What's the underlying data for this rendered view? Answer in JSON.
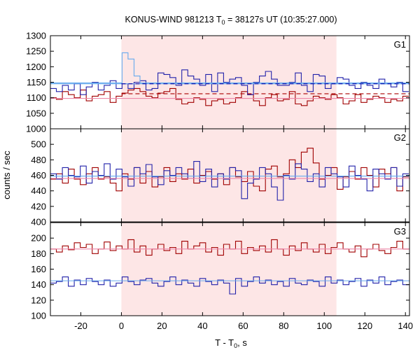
{
  "chart_data": {
    "type": "line",
    "title": {
      "main": "KONUS-WIND 981213 T",
      "sub": "0",
      "rest": " = 38127s UT (10:35:27.000)"
    },
    "xlabel": {
      "main": "T - T",
      "sub": "0",
      "rest": ", s"
    },
    "ylabel": "counts / sec",
    "xlim": [
      -35,
      142
    ],
    "x_ticks": [
      -20,
      0,
      20,
      40,
      60,
      80,
      100,
      120,
      140
    ],
    "highlight_interval": [
      0,
      106
    ],
    "bin_start": -35,
    "bin_width": 2.944,
    "colors": {
      "highlight": "#fde6e6",
      "dark_red": "#a00000",
      "dark_blue": "#2222aa",
      "light_blue": "#66aaee",
      "pink": "#ee88aa",
      "dashed_blue": "#0000aa",
      "dashed_red": "#aa0000"
    },
    "panels": [
      {
        "label": "G1",
        "ylim": [
          1000,
          1300
        ],
        "y_ticks": [
          1000,
          1050,
          1100,
          1150,
          1200,
          1250,
          1300
        ],
        "series": [
          {
            "color_key": "dark_red",
            "values": [
              1100,
              1095,
              1120,
              1110,
              1100,
              1125,
              1090,
              1105,
              1110,
              1120,
              1085,
              1105,
              1115,
              1125,
              1130,
              1120,
              1105,
              1100,
              1115,
              1120,
              1130,
              1095,
              1080,
              1085,
              1100,
              1095,
              1075,
              1090,
              1095,
              1080,
              1085,
              1100,
              1120,
              1110,
              1090,
              1075,
              1100,
              1110,
              1090,
              1095,
              1120,
              1080,
              1075,
              1090,
              1105,
              1100,
              1095,
              1110,
              1100,
              1080,
              1090,
              1110,
              1085,
              1095,
              1105,
              1100,
              1085,
              1095,
              1090,
              1105
            ]
          },
          {
            "color_key": "dark_blue",
            "values": [
              1130,
              1120,
              1140,
              1125,
              1145,
              1110,
              1135,
              1150,
              1125,
              1140,
              1155,
              1130,
              1145,
              1130,
              1150,
              1155,
              1125,
              1130,
              1180,
              1175,
              1165,
              1140,
              1190,
              1170,
              1160,
              1140,
              1175,
              1120,
              1180,
              1150,
              1160,
              1165,
              1140,
              1110,
              1150,
              1170,
              1185,
              1160,
              1140,
              1140,
              1150,
              1180,
              1140,
              1120,
              1175,
              1170,
              1130,
              1145,
              1165,
              1160,
              1140,
              1130,
              1150,
              1140,
              1130,
              1160,
              1145,
              1135,
              1150,
              1120
            ]
          },
          {
            "color_key": "light_blue",
            "values": [
              1148,
              1148,
              1148,
              1148,
              1148,
              1148,
              1148,
              1148,
              1148,
              1148,
              1148,
              1148,
              1245,
              1225,
              1170,
              1148,
              1148,
              1148,
              1148,
              1148,
              1148,
              1148,
              1148,
              1148,
              1148,
              1148,
              1148,
              1148,
              1148,
              1148,
              1148,
              1148,
              1148,
              1148,
              1148,
              1148,
              1148,
              1148,
              1148,
              1148,
              1148,
              1148,
              1148,
              1148,
              1148,
              1148,
              1148,
              1148,
              1148,
              1148,
              1148,
              1148,
              1148,
              1148,
              1148,
              1148,
              1148,
              1148,
              1148,
              1148
            ]
          }
        ],
        "fit_lines": [
          {
            "color_key": "light_blue",
            "style": "solid",
            "y": 1145,
            "x": [
              -35,
              142
            ]
          },
          {
            "color_key": "pink",
            "style": "solid",
            "y": 1098,
            "x": [
              -35,
              142
            ]
          },
          {
            "color_key": "dashed_blue",
            "style": "dashed",
            "y": 1145,
            "x": [
              0,
              142
            ]
          },
          {
            "color_key": "dashed_red",
            "style": "dashed",
            "y": 1113,
            "x": [
              0,
              142
            ]
          }
        ]
      },
      {
        "label": "G2",
        "ylim": [
          400,
          520
        ],
        "y_ticks": [
          400,
          420,
          440,
          460,
          480,
          500
        ],
        "series": [
          {
            "color_key": "dark_red",
            "values": [
              455,
              462,
              450,
              468,
              455,
              448,
              462,
              470,
              455,
              458,
              450,
              440,
              462,
              455,
              470,
              450,
              465,
              445,
              458,
              470,
              452,
              462,
              455,
              468,
              450,
              460,
              465,
              455,
              462,
              448,
              470,
              458,
              452,
              465,
              446,
              440,
              468,
              472,
              458,
              462,
              480,
              470,
              490,
              495,
              476,
              455,
              460,
              470,
              442,
              458,
              465,
              455,
              470,
              460,
              445,
              468,
              462,
              470,
              440,
              458
            ]
          },
          {
            "color_key": "dark_blue",
            "values": [
              462,
              455,
              470,
              460,
              458,
              472,
              450,
              465,
              460,
              475,
              455,
              468,
              458,
              446,
              470,
              462,
              474,
              458,
              448,
              466,
              460,
              470,
              462,
              456,
              478,
              452,
              468,
              445,
              462,
              455,
              470,
              466,
              430,
              450,
              455,
              470,
              462,
              445,
              428,
              460,
              455,
              475,
              468,
              452,
              462,
              445,
              470,
              462,
              458,
              445,
              472,
              460,
              455,
              440,
              468,
              462,
              455,
              470,
              446,
              462
            ]
          }
        ],
        "fit_lines": [
          {
            "color_key": "light_blue",
            "style": "solid",
            "y": 459,
            "x": [
              -35,
              142
            ]
          },
          {
            "color_key": "pink",
            "style": "solid",
            "y": 456,
            "x": [
              -35,
              142
            ]
          }
        ]
      },
      {
        "label": "G3",
        "ylim": [
          100,
          220
        ],
        "y_ticks": [
          100,
          120,
          140,
          160,
          180,
          200
        ],
        "series": [
          {
            "color_key": "dark_red",
            "values": [
              186,
              182,
              190,
              185,
              194,
              188,
              192,
              180,
              186,
              195,
              184,
              190,
              186,
              198,
              182,
              190,
              178,
              186,
              192,
              184,
              188,
              180,
              196,
              186,
              190,
              194,
              182,
              188,
              178,
              192,
              186,
              196,
              180,
              188,
              184,
              190,
              182,
              198,
              186,
              178,
              190,
              184,
              194,
              186,
              182,
              192,
              180,
              188,
              194,
              186,
              182,
              190,
              176,
              186,
              192,
              184,
              180,
              188,
              196,
              186
            ]
          },
          {
            "color_key": "dark_blue",
            "values": [
              142,
              144,
              150,
              138,
              146,
              140,
              148,
              144,
              140,
              146,
              138,
              142,
              150,
              144,
              140,
              146,
              148,
              142,
              138,
              144,
              150,
              140,
              146,
              142,
              138,
              148,
              144,
              140,
              146,
              142,
              128,
              148,
              138,
              144,
              150,
              142,
              146,
              140,
              144,
              138,
              148,
              142,
              140,
              146,
              144,
              138,
              150,
              142,
              146,
              140,
              144,
              148,
              138,
              146,
              142,
              150,
              140,
              144,
              146,
              140
            ]
          }
        ],
        "fit_lines": [
          {
            "color_key": "light_blue",
            "style": "solid",
            "y": 145,
            "x": [
              -35,
              142
            ]
          },
          {
            "color_key": "pink",
            "style": "solid",
            "y": 186,
            "x": [
              -35,
              142
            ]
          }
        ]
      }
    ]
  }
}
